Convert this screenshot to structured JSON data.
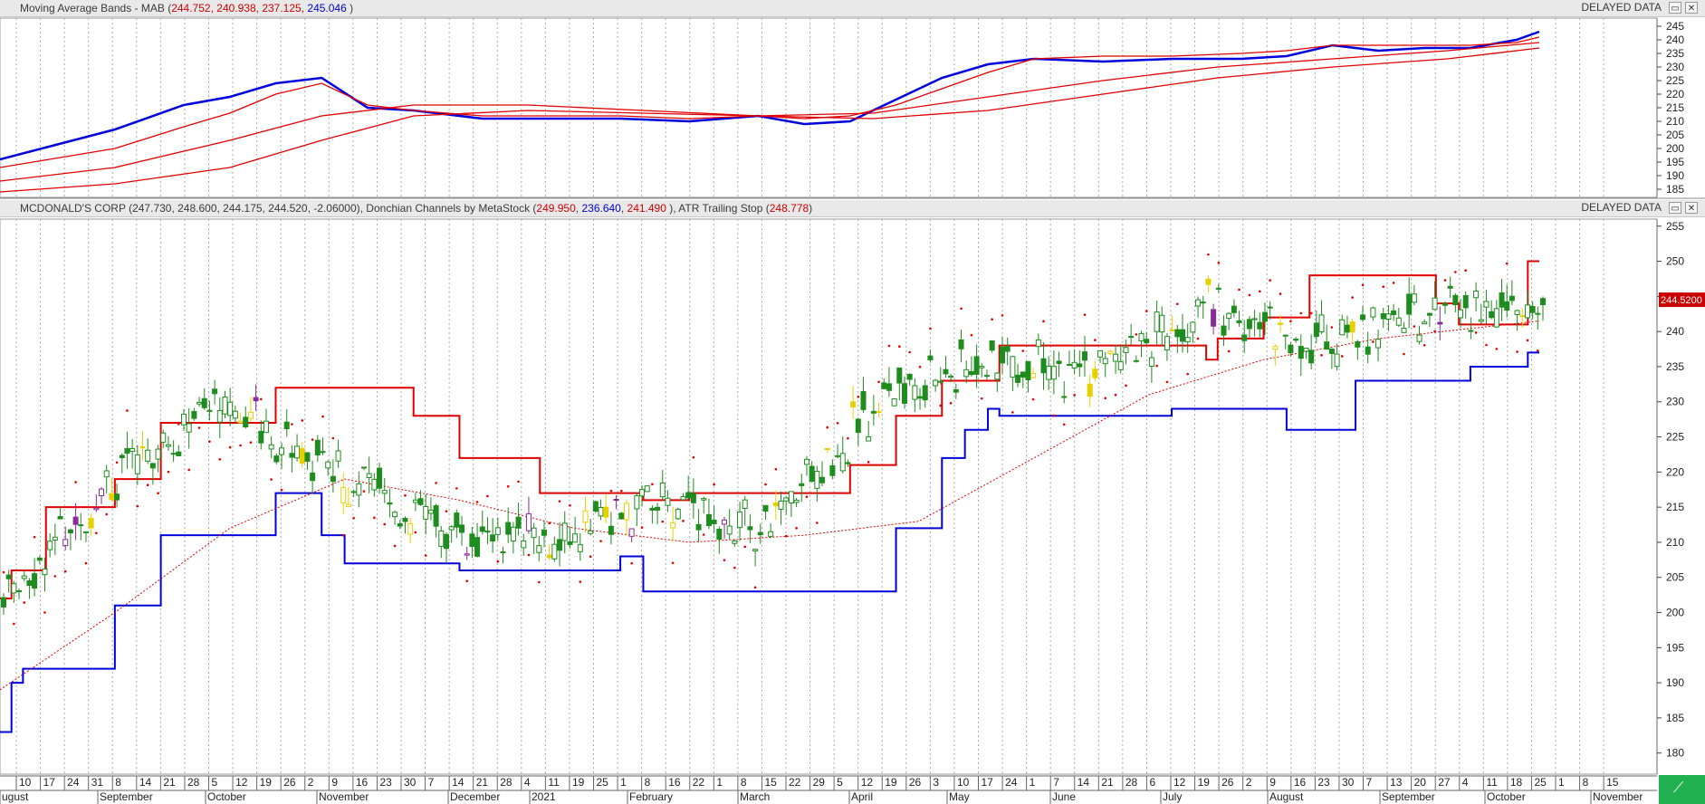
{
  "top_panel": {
    "title_prefix": "Moving Average Bands - MAB (",
    "values": [
      "244.752",
      "240.938",
      "237.125"
    ],
    "value_blue": "245.046",
    "title_suffix": " )",
    "delayed": "DELAYED DATA"
  },
  "price_panel": {
    "title_prefix": "MCDONALD'S CORP (247.730, 248.600, 244.175, 244.520, -2.06000), Donchian Channels by MetaStock (",
    "donchian_upper": "249.950",
    "donchian_lower": "236.640",
    "donchian_mid": "241.490",
    "title_mid": " ), ATR Trailing Stop (",
    "atr_stop": "248.778",
    "title_suffix": ")",
    "delayed": "DELAYED DATA",
    "last_price_label": "244.5200"
  },
  "window_buttons": [
    "restore-icon",
    "close-icon"
  ],
  "colors": {
    "up": "#1e8c1e",
    "down": "#1e8c1e",
    "yellow": "#e8d000",
    "purple": "#8a2a9a",
    "channel_upper": "#e00000",
    "channel_lower": "#0000dd",
    "atr": "#e00000"
  },
  "chart_data": {
    "type": "candlestick",
    "x_axis": {
      "day_ticks": [
        "10",
        "17",
        "24",
        "31",
        "8",
        "14",
        "21",
        "28",
        "5",
        "12",
        "19",
        "26",
        "2",
        "9",
        "16",
        "23",
        "30",
        "7",
        "14",
        "21",
        "28",
        "4",
        "11",
        "19",
        "25",
        "1",
        "8",
        "16",
        "22",
        "1",
        "8",
        "15",
        "22",
        "29",
        "5",
        "12",
        "19",
        "26",
        "3",
        "10",
        "17",
        "24",
        "1",
        "7",
        "14",
        "21",
        "28",
        "6",
        "12",
        "19",
        "26",
        "2",
        "9",
        "16",
        "23",
        "30",
        "7",
        "13",
        "20",
        "27",
        "4",
        "11",
        "18",
        "25",
        "1",
        "8",
        "15"
      ],
      "months": [
        "ugust",
        "September",
        "October",
        "November",
        "December",
        "2021",
        "February",
        "March",
        "April",
        "May",
        "June",
        "July",
        "August",
        "September",
        "October",
        "November"
      ]
    },
    "top_panel": {
      "ylim": [
        182,
        248
      ],
      "yticks": [
        185,
        190,
        195,
        200,
        205,
        210,
        215,
        220,
        225,
        230,
        235,
        240,
        245
      ],
      "series": [
        {
          "name": "MAB upper",
          "color": "blue",
          "x": [
            0,
            100,
            160,
            200,
            240,
            280,
            320,
            360,
            420,
            480,
            540,
            600,
            660,
            700,
            740,
            780,
            820,
            860,
            900,
            960,
            1020,
            1080,
            1120,
            1160,
            1200,
            1240,
            1280,
            1320,
            1340
          ],
          "y": [
            196,
            207,
            216,
            219,
            224,
            226,
            215,
            214,
            211,
            211,
            211,
            210,
            212,
            209,
            210,
            218,
            226,
            231,
            233,
            232,
            233,
            233,
            234,
            238,
            236,
            237,
            237,
            240,
            243
          ]
        },
        {
          "name": "MAB mid",
          "color": "red",
          "x": [
            0,
            100,
            160,
            200,
            240,
            280,
            320,
            360,
            420,
            480,
            540,
            600,
            660,
            700,
            740,
            780,
            820,
            860,
            900,
            960,
            1020,
            1080,
            1120,
            1160,
            1200,
            1240,
            1280,
            1320,
            1340
          ],
          "y": [
            193,
            200,
            208,
            213,
            220,
            224,
            216,
            214,
            212,
            212,
            212,
            211,
            212,
            211,
            212,
            216,
            222,
            228,
            233,
            234,
            234,
            235,
            236,
            238,
            238,
            238,
            238,
            239,
            241
          ]
        },
        {
          "name": "MAB lower1",
          "color": "red",
          "x": [
            0,
            100,
            200,
            280,
            360,
            460,
            560,
            660,
            760,
            860,
            960,
            1060,
            1160,
            1260,
            1340
          ],
          "y": [
            188,
            193,
            203,
            212,
            216,
            216,
            214,
            212,
            213,
            219,
            225,
            230,
            233,
            236,
            239
          ]
        },
        {
          "name": "MAB lower2",
          "color": "red",
          "x": [
            0,
            100,
            200,
            280,
            360,
            460,
            560,
            660,
            760,
            860,
            960,
            1060,
            1160,
            1260,
            1340
          ],
          "y": [
            184,
            187,
            193,
            203,
            212,
            214,
            213,
            212,
            211,
            214,
            220,
            226,
            230,
            233,
            237
          ]
        }
      ]
    },
    "price_panel": {
      "ylim": [
        177,
        256
      ],
      "yticks": [
        180,
        185,
        190,
        195,
        200,
        205,
        210,
        215,
        220,
        225,
        230,
        235,
        240,
        245,
        250,
        255
      ],
      "donchian_upper": {
        "x": [
          0,
          10,
          40,
          100,
          140,
          200,
          240,
          330,
          360,
          400,
          470,
          560,
          600,
          700,
          740,
          780,
          820,
          870,
          930,
          1000,
          1050,
          1060,
          1100,
          1140,
          1160,
          1250,
          1270,
          1280,
          1330,
          1340
        ],
        "y": [
          202,
          206,
          215,
          219,
          227,
          227,
          232,
          232,
          228,
          222,
          217,
          216,
          217,
          217,
          221,
          228,
          233,
          238,
          238,
          238,
          236,
          239,
          242,
          248,
          248,
          244,
          241,
          241,
          250,
          250
        ]
      },
      "donchian_lower": {
        "x": [
          0,
          10,
          20,
          60,
          100,
          140,
          240,
          280,
          300,
          360,
          400,
          470,
          540,
          560,
          620,
          660,
          740,
          780,
          820,
          840,
          860,
          870,
          940,
          1020,
          1080,
          1120,
          1160,
          1180,
          1220,
          1280,
          1330,
          1340
        ],
        "y": [
          183,
          190,
          192,
          192,
          201,
          211,
          217,
          211,
          207,
          207,
          206,
          206,
          208,
          203,
          203,
          203,
          203,
          212,
          222,
          226,
          229,
          228,
          228,
          229,
          229,
          226,
          226,
          233,
          233,
          235,
          237,
          237
        ]
      }
    },
    "ohlc_sample": [
      {
        "d": "Aug",
        "o": 200,
        "h": 203,
        "l": 198,
        "c": 202
      },
      {
        "d": "Sep",
        "o": 216,
        "h": 222,
        "l": 214,
        "c": 219
      },
      {
        "d": "Oct",
        "o": 228,
        "h": 232,
        "l": 225,
        "c": 230
      },
      {
        "d": "Nov",
        "o": 212,
        "h": 228,
        "l": 207,
        "c": 220
      },
      {
        "d": "Dec",
        "o": 210,
        "h": 214,
        "l": 206,
        "c": 212
      },
      {
        "d": "Jan",
        "o": 213,
        "h": 216,
        "l": 206,
        "c": 210
      },
      {
        "d": "Feb",
        "o": 212,
        "h": 217,
        "l": 208,
        "c": 215
      },
      {
        "d": "Mar",
        "o": 206,
        "h": 214,
        "l": 202,
        "c": 212
      },
      {
        "d": "Apr",
        "o": 228,
        "h": 233,
        "l": 225,
        "c": 231
      },
      {
        "d": "May",
        "o": 234,
        "h": 239,
        "l": 229,
        "c": 236
      },
      {
        "d": "Jun",
        "o": 232,
        "h": 237,
        "l": 228,
        "c": 234
      },
      {
        "d": "Jul",
        "o": 238,
        "h": 247,
        "l": 229,
        "c": 244
      },
      {
        "d": "Aug",
        "o": 236,
        "h": 241,
        "l": 233,
        "c": 238
      },
      {
        "d": "Sep",
        "o": 240,
        "h": 246,
        "l": 236,
        "c": 243
      },
      {
        "d": "Oct",
        "o": 247.73,
        "h": 248.6,
        "l": 244.175,
        "c": 244.52
      }
    ]
  }
}
